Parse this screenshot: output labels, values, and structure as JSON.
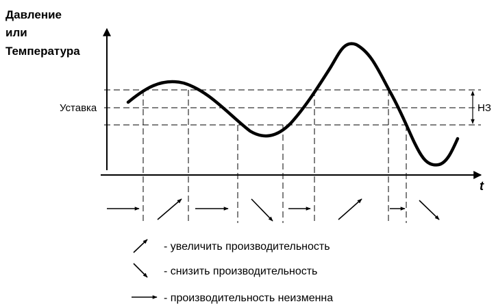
{
  "y_label": [
    "Давление",
    "или",
    "Температура"
  ],
  "x_label": "t",
  "setpoint_label": "Уставка",
  "hysteresis_label": "НЗ",
  "legend": {
    "increase": "- увеличить производительность",
    "decrease": "- снизить производительность",
    "unchanged": "- производительность неизменна"
  },
  "zone_actions": [
    "unchanged",
    "increase",
    "unchanged",
    "decrease",
    "unchanged",
    "increase",
    "unchanged",
    "decrease"
  ],
  "colors": {
    "ink": "#000000",
    "background": "#ffffff"
  }
}
